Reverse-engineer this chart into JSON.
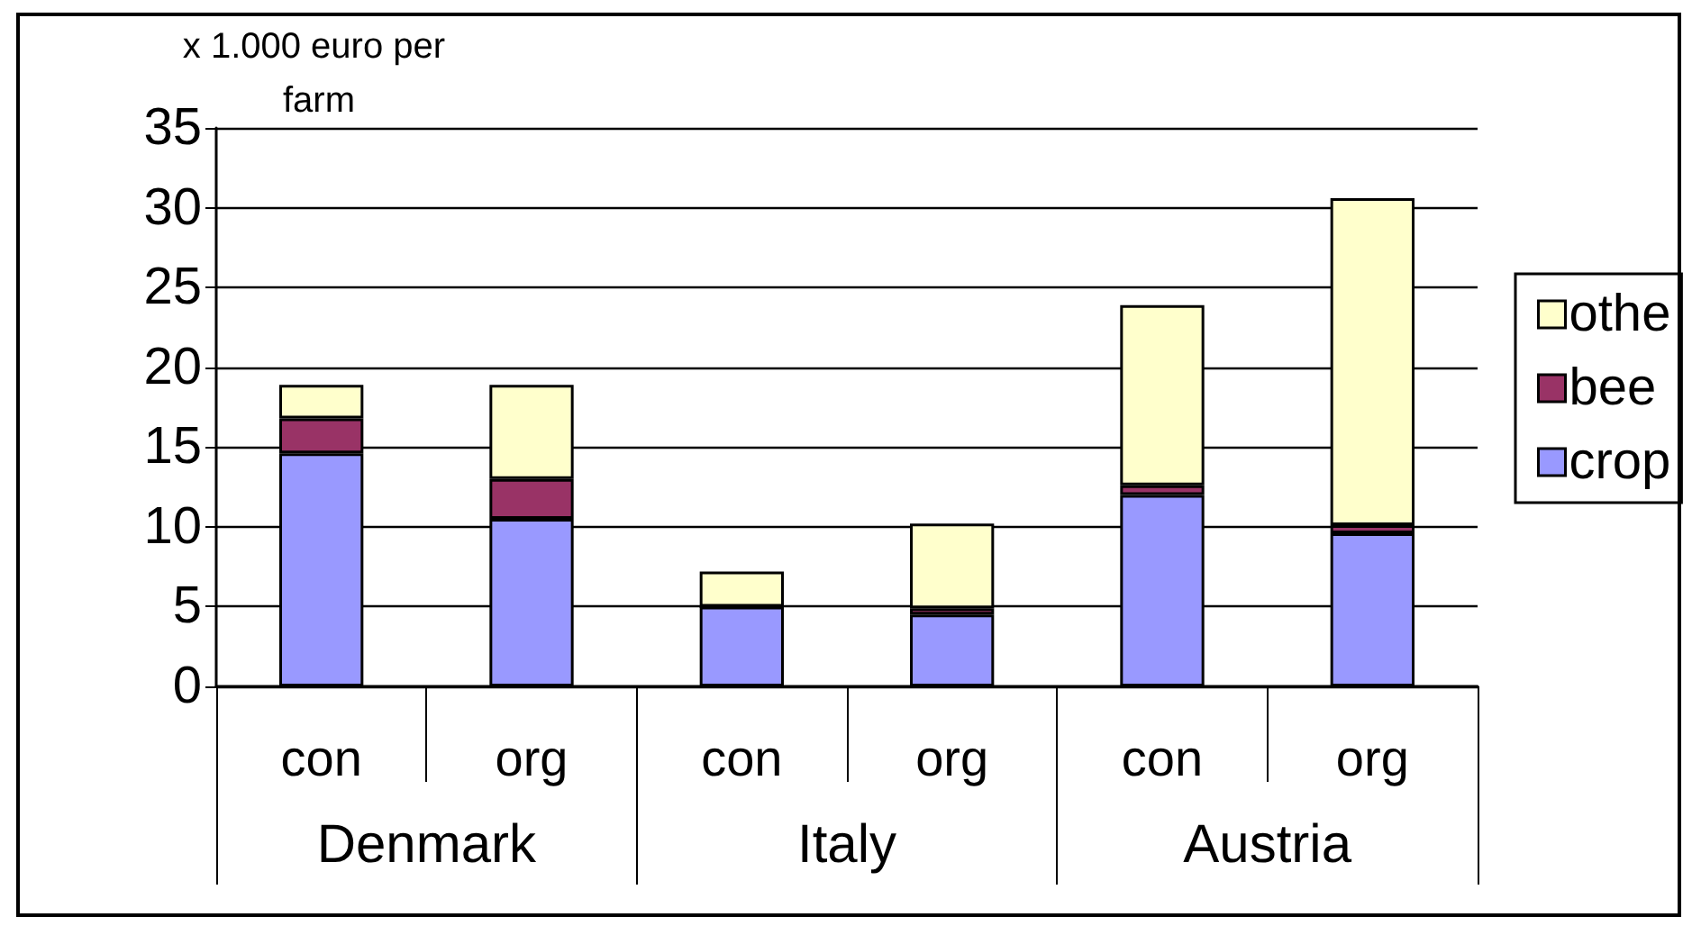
{
  "chart_data": {
    "type": "bar",
    "stacked": true,
    "ylabel": "x 1.000 euro per farm",
    "categories": [
      "con",
      "org",
      "con",
      "org",
      "con",
      "org"
    ],
    "annotations": [
      "Denmark",
      "Italy",
      "Austria"
    ],
    "series": [
      {
        "name": "crop",
        "color": "#9999ff",
        "values": [
          14.6,
          10.5,
          5.0,
          4.5,
          12.0,
          9.6
        ]
      },
      {
        "name": "bee",
        "color": "#993366",
        "values": [
          2.2,
          2.5,
          0,
          0.4,
          0.6,
          0.5
        ]
      },
      {
        "name": "othe",
        "color": "#ffffcc",
        "values": [
          2.1,
          5.9,
          2.2,
          5.3,
          11.3,
          20.5
        ]
      }
    ],
    "ylim": [
      0,
      35
    ],
    "yticks": [
      0,
      5,
      10,
      15,
      20,
      25,
      30,
      35
    ],
    "grid": "y",
    "legend": "right"
  }
}
